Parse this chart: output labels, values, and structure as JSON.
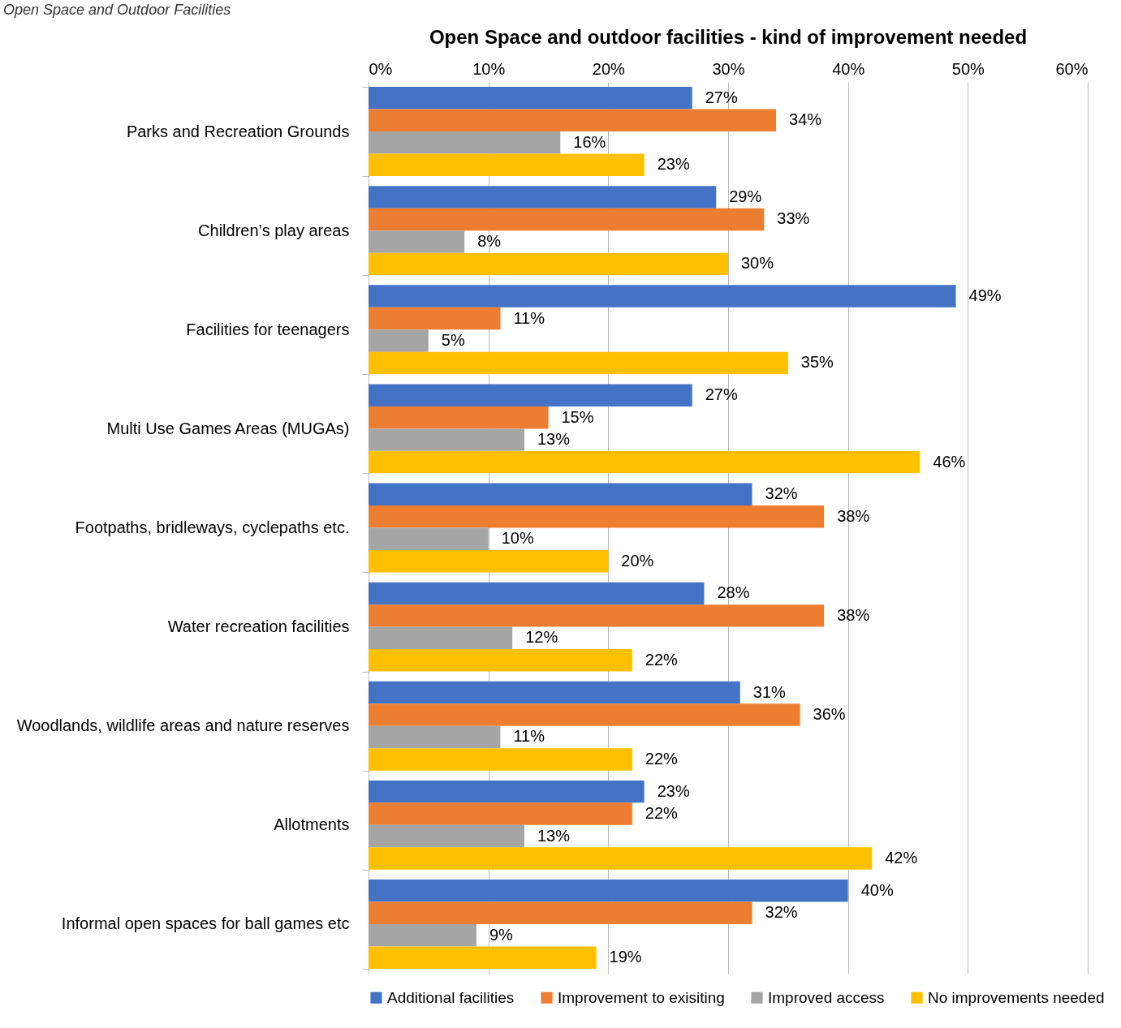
{
  "chart_data": {
    "type": "bar",
    "orientation": "horizontal",
    "title": "Open Space and outdoor facilities - kind of improvement needed",
    "annotations": [
      "Open Space and Outdoor Facilities"
    ],
    "categories": [
      "Parks and Recreation Grounds",
      "Children’s play areas",
      "Facilities for teenagers",
      "Multi Use Games Areas (MUGAs)",
      "Footpaths, bridleways, cyclepaths etc.",
      "Water recreation facilities",
      "Woodlands, wildlife areas and nature reserves",
      "Allotments",
      "Informal open spaces for ball games etc"
    ],
    "series": [
      {
        "name": "Additional facilities",
        "color": "#4472c4",
        "values": [
          27,
          29,
          49,
          27,
          32,
          28,
          31,
          23,
          40
        ],
        "value_labels": [
          "27%",
          "29%",
          "49%",
          "27%",
          "32%",
          "28%",
          "31%",
          "23%",
          "40%"
        ]
      },
      {
        "name": "Improvement to exisiting",
        "color": "#ed7d31",
        "values": [
          34,
          33,
          11,
          15,
          38,
          38,
          36,
          22,
          32
        ],
        "value_labels": [
          "34%",
          "33%",
          "11%",
          "15%",
          "38%",
          "38%",
          "36%",
          "22%",
          "32%"
        ]
      },
      {
        "name": "Improved access",
        "color": "#a5a5a5",
        "values": [
          16,
          8,
          5,
          13,
          10,
          12,
          11,
          13,
          9
        ],
        "value_labels": [
          "16%",
          "8%",
          "5%",
          "13%",
          "10%",
          "12%",
          "11%",
          "13%",
          "9%"
        ]
      },
      {
        "name": "No improvements needed",
        "color": "#ffc000",
        "values": [
          23,
          30,
          35,
          46,
          20,
          22,
          22,
          42,
          19
        ],
        "value_labels": [
          "23%",
          "30%",
          "35%",
          "46%",
          "20%",
          "22%",
          "22%",
          "42%",
          "19%"
        ]
      }
    ],
    "xlim": [
      0,
      60
    ],
    "xticks": [
      {
        "value": 0,
        "label": "0%"
      },
      {
        "value": 10,
        "label": "10%"
      },
      {
        "value": 20,
        "label": "20%"
      },
      {
        "value": 30,
        "label": "30%"
      },
      {
        "value": 40,
        "label": "40%"
      },
      {
        "value": 50,
        "label": "50%"
      },
      {
        "value": 60,
        "label": "60%"
      }
    ],
    "grid": "x",
    "legend": "bottom"
  }
}
